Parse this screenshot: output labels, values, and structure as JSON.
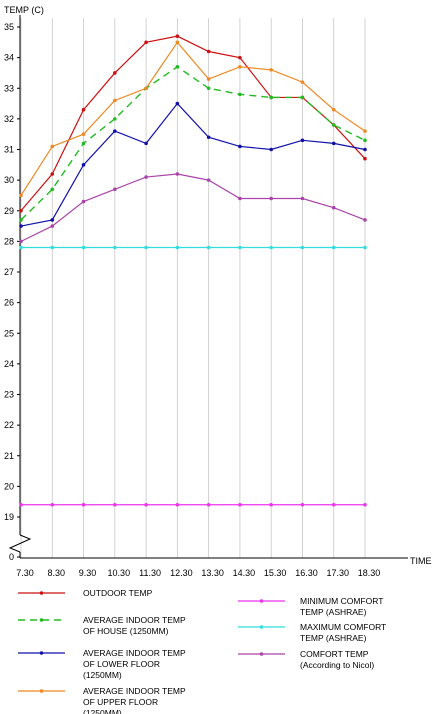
{
  "chart_data": {
    "type": "line",
    "ylabel": "TEMP (C)",
    "xlabel": "TIME",
    "x": [
      "7.30",
      "8.30",
      "9.30",
      "10.30",
      "11.30",
      "12.30",
      "13.30",
      "14.30",
      "15.30",
      "16.30",
      "17.30",
      "18.30"
    ],
    "y_ticks": [
      "0",
      "19",
      "20",
      "21",
      "22",
      "23",
      "24",
      "25",
      "26",
      "27",
      "28",
      "29",
      "30",
      "31",
      "32",
      "33",
      "34",
      "35"
    ],
    "ylim": [
      19,
      35
    ],
    "axis_break": true,
    "grid": "vertical",
    "legend_position": "bottom",
    "series": [
      {
        "name": "OUTDOOR TEMP",
        "color": "#cc1111",
        "dash": false,
        "values": [
          29.0,
          30.2,
          32.3,
          33.5,
          34.5,
          34.7,
          34.2,
          34.0,
          32.7,
          32.7,
          31.8,
          30.7
        ]
      },
      {
        "name": "AVERAGE INDOOR TEMP OF HOUSE (1250MM)",
        "color": "#22bb22",
        "dash": true,
        "values": [
          28.7,
          29.7,
          31.2,
          32.0,
          33.0,
          33.7,
          33.0,
          32.8,
          32.7,
          32.7,
          31.8,
          31.3
        ]
      },
      {
        "name": "AVERAGE INDOOR TEMP OF LOWER FLOOR (1250MM)",
        "color": "#1111aa",
        "dash": false,
        "values": [
          28.5,
          28.7,
          30.5,
          31.6,
          31.2,
          32.5,
          31.4,
          31.1,
          31.0,
          31.3,
          31.2,
          31.0
        ]
      },
      {
        "name": "AVERAGE INDOOR TEMP OF UPPER FLOOR (1250MM)",
        "color": "#ee8822",
        "dash": false,
        "values": [
          29.5,
          31.1,
          31.5,
          32.6,
          33.0,
          34.5,
          33.3,
          33.7,
          33.6,
          33.2,
          32.3,
          31.6
        ]
      },
      {
        "name": "MINIMUM COMFORT TEMP (ASHRAE)",
        "color": "#ee33ee",
        "dash": false,
        "values": [
          19.4,
          19.4,
          19.4,
          19.4,
          19.4,
          19.4,
          19.4,
          19.4,
          19.4,
          19.4,
          19.4,
          19.4
        ]
      },
      {
        "name": "MAXIMUM COMFORT TEMP (ASHRAE)",
        "color": "#33dddd",
        "dash": false,
        "values": [
          27.8,
          27.8,
          27.8,
          27.8,
          27.8,
          27.8,
          27.8,
          27.8,
          27.8,
          27.8,
          27.8,
          27.8
        ]
      },
      {
        "name": "COMFORT TEMP (According to Nicol)",
        "color": "#aa44aa",
        "dash": false,
        "values": [
          28.0,
          28.5,
          29.3,
          29.7,
          30.1,
          30.2,
          30.0,
          29.4,
          29.4,
          29.4,
          29.1,
          28.7
        ]
      }
    ],
    "legend": {
      "left": [
        {
          "series": 0,
          "lines": [
            "OUTDOOR TEMP"
          ]
        },
        {
          "series": 1,
          "lines": [
            "AVERAGE INDOOR TEMP",
            "OF HOUSE (1250MM)"
          ]
        },
        {
          "series": 2,
          "lines": [
            "AVERAGE INDOOR TEMP",
            "OF LOWER FLOOR",
            "(1250MM)"
          ]
        },
        {
          "series": 3,
          "lines": [
            "AVERAGE INDOOR TEMP",
            "OF UPPER FLOOR",
            "(1250MM)"
          ]
        }
      ],
      "right": [
        {
          "series": 4,
          "lines": [
            "MINIMUM COMFORT",
            "TEMP (ASHRAE)"
          ]
        },
        {
          "series": 5,
          "lines": [
            "MAXIMUM COMFORT",
            "TEMP (ASHRAE)"
          ]
        },
        {
          "series": 6,
          "lines": [
            "COMFORT TEMP",
            "(According to Nicol)"
          ]
        }
      ]
    }
  }
}
